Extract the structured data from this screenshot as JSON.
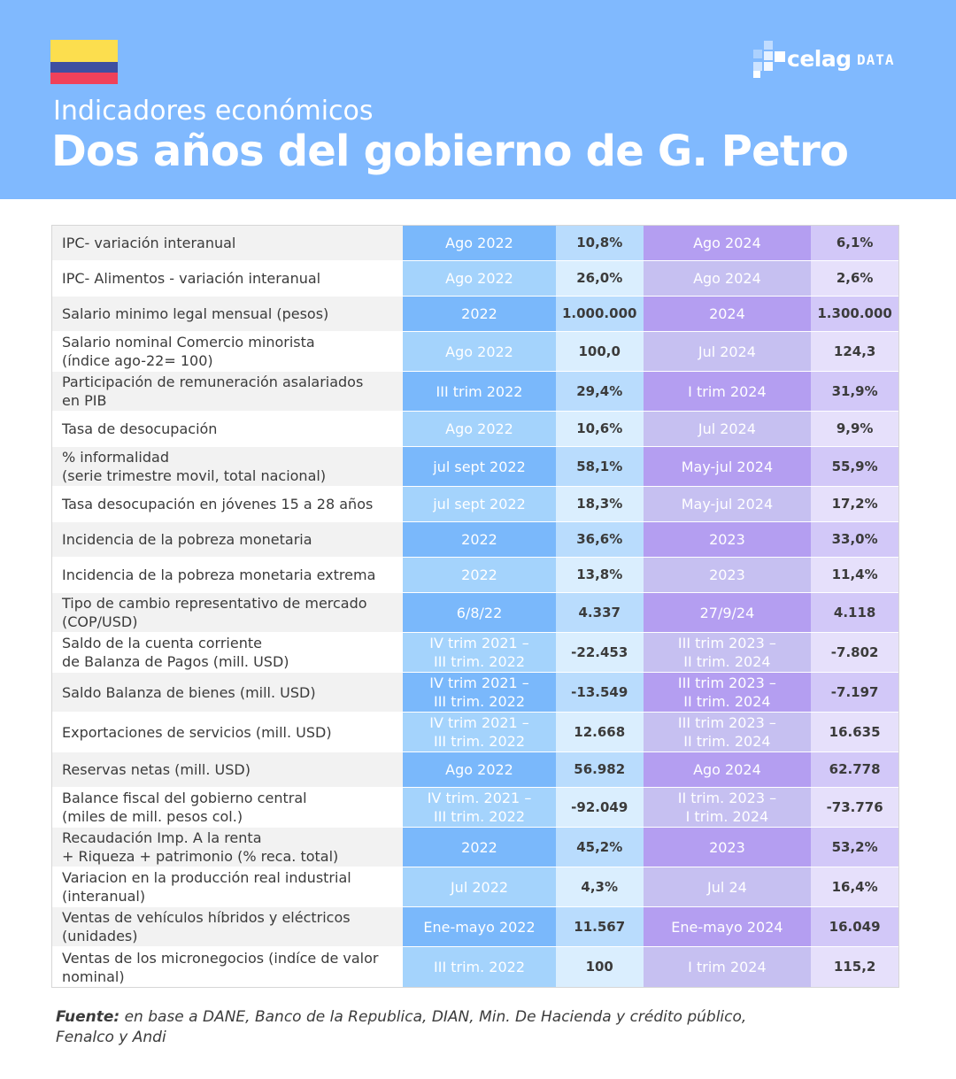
{
  "header": {
    "subtitle": "Indicadores económicos",
    "title": "Dos años del gobierno de G. Petro",
    "logo_text": "celag",
    "logo_suffix": "DATA",
    "colors": {
      "header_bg": "#80b9fe",
      "flag_yellow": "#fcde4e",
      "flag_blue": "#3f4fa0",
      "flag_red": "#f0415a"
    }
  },
  "table": {
    "rows": [
      {
        "label": "IPC- variación interanual",
        "date1": "Ago 2022",
        "value1": "10,8%",
        "date2": "Ago 2024",
        "value2": "6,1%"
      },
      {
        "label": "IPC- Alimentos - variación interanual",
        "date1": "Ago 2022",
        "value1": "26,0%",
        "date2": "Ago 2024",
        "value2": "2,6%"
      },
      {
        "label": "Salario minimo legal mensual (pesos)",
        "date1": "2022",
        "value1": "1.000.000",
        "date2": "2024",
        "value2": "1.300.000"
      },
      {
        "label": "Salario nominal Comercio minorista\n(índice ago-22= 100)",
        "date1": "Ago 2022",
        "value1": "100,0",
        "date2": "Jul 2024",
        "value2": "124,3"
      },
      {
        "label": "Participación de remuneración asalariados\nen PIB",
        "date1": "III trim 2022",
        "value1": "29,4%",
        "date2": "I trim 2024",
        "value2": "31,9%"
      },
      {
        "label": "Tasa de desocupación",
        "date1": "Ago 2022",
        "value1": "10,6%",
        "date2": "Jul 2024",
        "value2": "9,9%"
      },
      {
        "label": "% informalidad\n(serie trimestre movil, total nacional)",
        "date1": "jul sept 2022",
        "value1": "58,1%",
        "date2": "May-jul 2024",
        "value2": "55,9%"
      },
      {
        "label": "Tasa desocupación en jóvenes 15 a 28 años",
        "date1": "jul sept 2022",
        "value1": "18,3%",
        "date2": "May-jul 2024",
        "value2": "17,2%"
      },
      {
        "label": "Incidencia de la pobreza monetaria",
        "date1": "2022",
        "value1": "36,6%",
        "date2": "2023",
        "value2": "33,0%"
      },
      {
        "label": "Incidencia de la pobreza monetaria extrema",
        "date1": "2022",
        "value1": "13,8%",
        "date2": "2023",
        "value2": "11,4%"
      },
      {
        "label": "Tipo de cambio representativo de mercado\n(COP/USD)",
        "date1": "6/8/22",
        "value1": "4.337",
        "date2": "27/9/24",
        "value2": "4.118"
      },
      {
        "label": "Saldo de la cuenta corriente\nde Balanza de Pagos (mill. USD)",
        "date1": "IV trim 2021 –\nIII trim. 2022",
        "value1": "-22.453",
        "date2": "III trim 2023  –\nII trim. 2024",
        "value2": "-7.802"
      },
      {
        "label": "Saldo Balanza de bienes (mill. USD)",
        "date1": "IV trim 2021 –\nIII trim. 2022",
        "value1": "-13.549",
        "date2": "III trim 2023 –\nII trim. 2024",
        "value2": "-7.197"
      },
      {
        "label": "Exportaciones de servicios (mill. USD)",
        "date1": "IV trim 2021 –\nIII trim. 2022",
        "value1": "12.668",
        "date2": "III trim 2023 –\nII trim. 2024",
        "value2": "16.635"
      },
      {
        "label": "Reservas netas (mill. USD)",
        "date1": "Ago 2022",
        "value1": "56.982",
        "date2": "Ago 2024",
        "value2": "62.778"
      },
      {
        "label": "Balance fiscal del gobierno central\n(miles de mill. pesos col.)",
        "date1": "IV trim. 2021 –\nIII trim. 2022",
        "value1": "-92.049",
        "date2": "II trim. 2023 –\nI trim. 2024",
        "value2": "-73.776"
      },
      {
        "label": "Recaudación Imp. A la renta\n+ Riqueza + patrimonio (% reca. total)",
        "date1": "2022",
        "value1": "45,2%",
        "date2": "2023",
        "value2": "53,2%"
      },
      {
        "label": "Variacion en la producción real industrial\n(interanual)",
        "date1": "Jul 2022",
        "value1": "4,3%",
        "date2": "Jul 24",
        "value2": "16,4%"
      },
      {
        "label": "Ventas de vehículos híbridos y eléctricos\n(unidades)",
        "date1": "Ene-mayo 2022",
        "value1": "11.567",
        "date2": "Ene-mayo 2024",
        "value2": "16.049"
      },
      {
        "label": "Ventas de los micronegocios (indíce de valor\nnominal)",
        "date1": "III trim. 2022",
        "value1": "100",
        "date2": "I trim 2024",
        "value2": "115,2"
      }
    ]
  },
  "source": {
    "label": "Fuente:",
    "text": " en base a DANE, Banco de la Republica, DIAN, Min. De Hacienda y crédito público,\nFenalco y Andi"
  }
}
